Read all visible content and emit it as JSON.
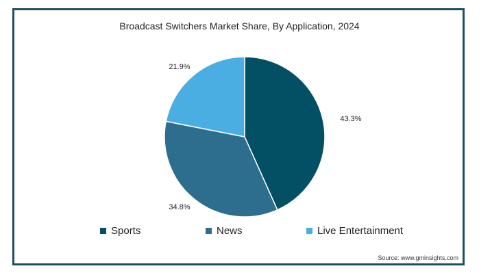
{
  "chart_data": {
    "type": "pie",
    "title": "Broadcast Switchers Market Share, By Application, 2024",
    "series": [
      {
        "name": "Sports",
        "value": 43.3,
        "label": "43.3%",
        "color": "#034f64"
      },
      {
        "name": "News",
        "value": 34.8,
        "label": "34.8%",
        "color": "#2d6e8e"
      },
      {
        "name": "Live Entertainment",
        "value": 21.9,
        "label": "21.9%",
        "color": "#4aaee3"
      }
    ],
    "legend_position": "bottom",
    "source": "Source: www.gminsights.com"
  }
}
